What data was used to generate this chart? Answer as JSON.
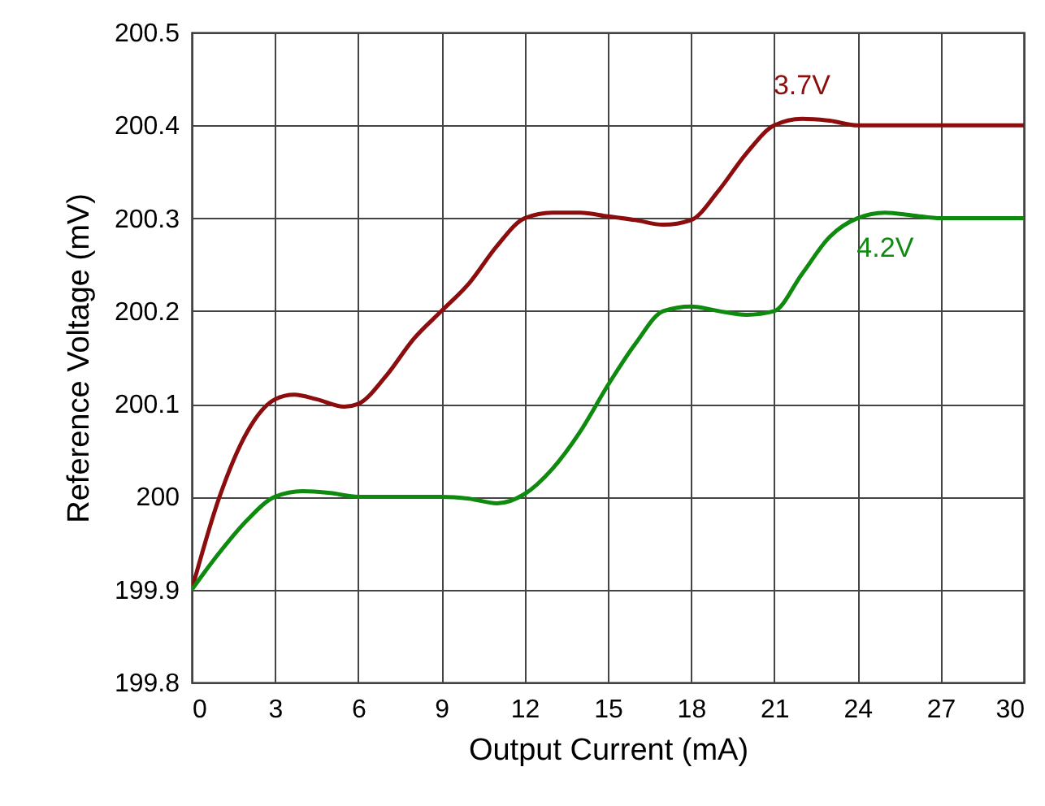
{
  "chart_data": {
    "type": "line",
    "xlabel": "Output Current (mA)",
    "ylabel": "Reference Voltage (mV)",
    "xlim": [
      0,
      30
    ],
    "xticks": [
      0,
      3,
      6,
      9,
      12,
      15,
      18,
      21,
      24,
      27,
      30
    ],
    "ylim": [
      199.8,
      200.5
    ],
    "yticks": [
      199.8,
      199.9,
      200,
      200.1,
      200.2,
      200.3,
      200.4,
      200.5
    ],
    "grid": true,
    "line_style": "solid",
    "series": [
      {
        "name": "3.7V",
        "color": "#8b0d0d",
        "x": [
          0,
          1,
          2,
          3,
          3.7,
          4.5,
          5.5,
          6,
          7,
          8,
          9,
          10,
          11,
          12,
          13,
          14,
          15,
          16,
          17,
          18,
          19,
          20,
          21,
          22,
          23,
          24,
          30
        ],
        "values": [
          199.9,
          200.0,
          200.07,
          200.105,
          200.11,
          200.105,
          200.097,
          200.1,
          200.13,
          200.17,
          200.2,
          200.23,
          200.27,
          200.3,
          200.306,
          200.306,
          200.302,
          200.298,
          200.293,
          200.298,
          200.33,
          200.37,
          200.4,
          200.407,
          200.405,
          200.4,
          200.4
        ]
      },
      {
        "name": "4.2V",
        "color": "#0e8a0e",
        "x": [
          0,
          1,
          2,
          3,
          4,
          5,
          6,
          9,
          10,
          11,
          12,
          13,
          14,
          15,
          16,
          17,
          18,
          19,
          20,
          21,
          22,
          23,
          24,
          25,
          26,
          27,
          30
        ],
        "values": [
          199.9,
          199.94,
          199.975,
          200.0,
          200.006,
          200.004,
          200.0,
          200.0,
          199.998,
          199.993,
          200.003,
          200.03,
          200.07,
          200.12,
          200.165,
          200.2,
          200.205,
          200.2,
          200.196,
          200.2,
          200.24,
          200.28,
          200.3,
          200.306,
          200.303,
          200.3,
          200.3
        ]
      }
    ]
  }
}
